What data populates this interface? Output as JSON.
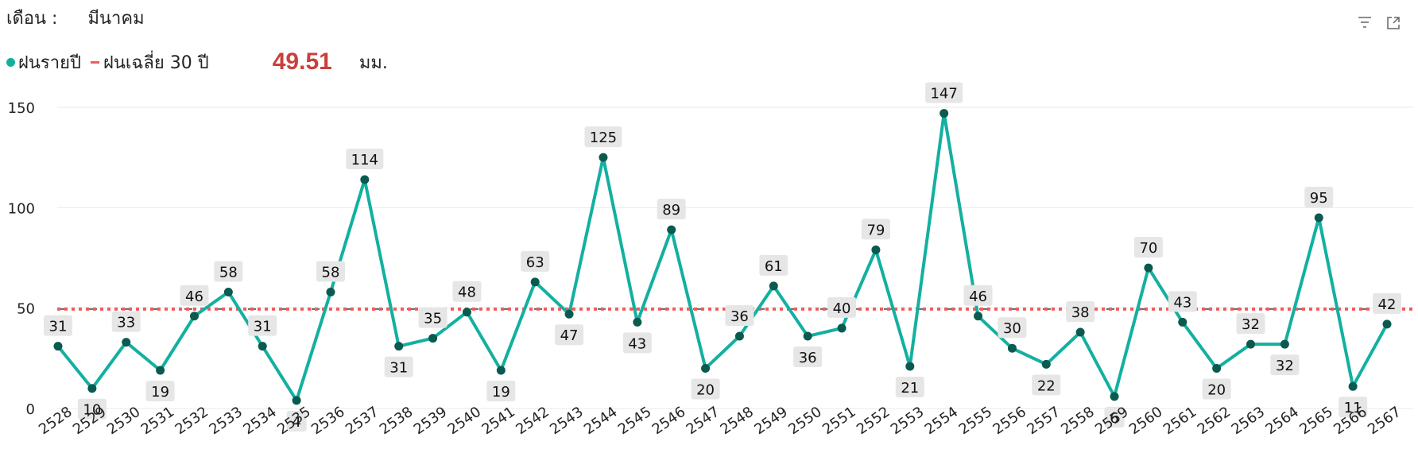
{
  "header": {
    "month_label": "เดือน :",
    "month_value": "มีนาคม"
  },
  "legend": {
    "annual_label": "ฝนรายปี",
    "avg_label": "ฝนเฉลี่ย 30 ปี",
    "avg_value": "49.51",
    "unit": "มม."
  },
  "icons": [
    "filter-icon",
    "focus-mode-icon"
  ],
  "colors": {
    "line": "#13b0a0",
    "marker": "#0b5a4f",
    "avg_line": "#f25c5c",
    "avg_value": "#c9403c",
    "label_bg": "#e6e6e6",
    "grid": "#e8e8e8"
  },
  "chart_data": {
    "type": "line",
    "x": [
      "2528",
      "2529",
      "2530",
      "2531",
      "2532",
      "2533",
      "2534",
      "2535",
      "2536",
      "2537",
      "2538",
      "2539",
      "2540",
      "2541",
      "2542",
      "2543",
      "2544",
      "2545",
      "2546",
      "2547",
      "2548",
      "2549",
      "2550",
      "2551",
      "2552",
      "2553",
      "2554",
      "2555",
      "2556",
      "2557",
      "2558",
      "2559",
      "2560",
      "2561",
      "2562",
      "2563",
      "2564",
      "2565",
      "2566",
      "2567"
    ],
    "series": [
      {
        "name": "ฝนรายปี",
        "values": [
          31,
          10,
          33,
          19,
          46,
          58,
          31,
          4,
          58,
          114,
          31,
          35,
          48,
          19,
          63,
          47,
          125,
          43,
          89,
          20,
          36,
          61,
          36,
          40,
          79,
          21,
          147,
          46,
          30,
          22,
          38,
          6,
          70,
          43,
          20,
          32,
          32,
          95,
          11,
          42
        ]
      }
    ],
    "reference_line": {
      "name": "ฝนเฉลี่ย 30 ปี",
      "value": 49.51
    },
    "yticks": [
      0,
      50,
      100,
      150
    ],
    "ylim": [
      0,
      150
    ],
    "grid": true,
    "legend_position": "top-left",
    "title": "",
    "xlabel": "",
    "ylabel": ""
  }
}
